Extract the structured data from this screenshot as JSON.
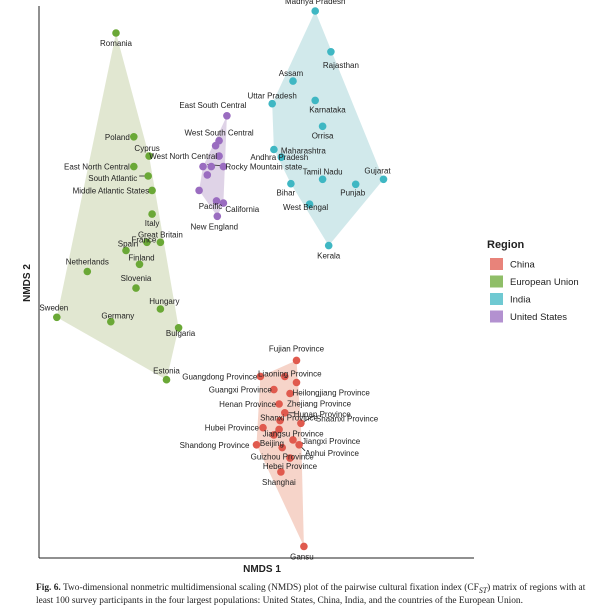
{
  "chart_data": {
    "type": "scatter",
    "xlabel": "NMDS 1",
    "ylabel": "NMDS 2",
    "xlim": [
      0,
      100
    ],
    "ylim": [
      0,
      100
    ],
    "legend": {
      "title": "Region",
      "placement": "right",
      "entries": [
        "China",
        "European Union",
        "India",
        "United States"
      ]
    },
    "series": [
      {
        "name": "China",
        "color": "#e05a4e",
        "hull_color": "#f6d2c6",
        "points": [
          {
            "label": "Fujian Province",
            "x": 59.2,
            "y": 35.8
          },
          {
            "label": "Guangdong Province",
            "x": 50.9,
            "y": 32.9
          },
          {
            "label": "Liaoning Province",
            "x": 56.5,
            "y": 32.9
          },
          {
            "label": "Heilongjiang Province",
            "x": 59.2,
            "y": 31.8
          },
          {
            "label": "Guangxi Province",
            "x": 54.0,
            "y": 30.5
          },
          {
            "label": "Zhejiang Province",
            "x": 57.7,
            "y": 29.8
          },
          {
            "label": "Henan Province",
            "x": 55.2,
            "y": 27.9
          },
          {
            "label": "Hunan Province",
            "x": 56.5,
            "y": 26.3
          },
          {
            "label": "Shanxi Province",
            "x": 55.4,
            "y": 24.9
          },
          {
            "label": "Shaanxi Province",
            "x": 60.2,
            "y": 24.4
          },
          {
            "label": "Hubei Province",
            "x": 51.5,
            "y": 23.6
          },
          {
            "label": "Jiangsu Province",
            "x": 55.2,
            "y": 23.3
          },
          {
            "label": "Beijing",
            "x": 54.0,
            "y": 22.3
          },
          {
            "label": "Jiangxi Province",
            "x": 58.4,
            "y": 21.4
          },
          {
            "label": "Shandong Province",
            "x": 50.0,
            "y": 20.5
          },
          {
            "label": "Anhui Province",
            "x": 59.8,
            "y": 20.5
          },
          {
            "label": "Guizhou Province",
            "x": 55.9,
            "y": 20.0
          },
          {
            "label": "Hebei Province",
            "x": 57.7,
            "y": 18.1
          },
          {
            "label": "Shanghai",
            "x": 55.6,
            "y": 15.6
          },
          {
            "label": "Gansu",
            "x": 60.9,
            "y": 2.1
          }
        ]
      },
      {
        "name": "European Union",
        "color": "#6aa836",
        "hull_color": "#dfe6cf",
        "points": [
          {
            "label": "Romania",
            "x": 17.7,
            "y": 95.1
          },
          {
            "label": "Poland",
            "x": 21.8,
            "y": 76.3
          },
          {
            "label": "Cyprus",
            "x": 25.3,
            "y": 72.8
          },
          {
            "label": "East North Central",
            "x": 21.8,
            "y": 70.9
          },
          {
            "label": "South Atlantic",
            "x": 25.1,
            "y": 69.2
          },
          {
            "label": "Middle Atlantic States",
            "x": 26.0,
            "y": 66.6
          },
          {
            "label": "Italy",
            "x": 26.0,
            "y": 62.3
          },
          {
            "label": "Great Britain",
            "x": 27.9,
            "y": 57.2
          },
          {
            "label": "France",
            "x": 24.8,
            "y": 57.2
          },
          {
            "label": "Spain",
            "x": 20.0,
            "y": 55.7
          },
          {
            "label": "Netherlands",
            "x": 11.1,
            "y": 51.9
          },
          {
            "label": "Finland",
            "x": 23.1,
            "y": 53.2
          },
          {
            "label": "Slovenia",
            "x": 22.3,
            "y": 48.9
          },
          {
            "label": "Hungary",
            "x": 27.9,
            "y": 45.1
          },
          {
            "label": "Sweden",
            "x": 4.1,
            "y": 43.6
          },
          {
            "label": "Germany",
            "x": 16.5,
            "y": 42.8
          },
          {
            "label": "Bulgaria",
            "x": 32.1,
            "y": 41.7
          },
          {
            "label": "Estonia",
            "x": 29.3,
            "y": 32.3
          }
        ]
      },
      {
        "name": "India",
        "color": "#3fb7c3",
        "hull_color": "#cfe8ea",
        "points": [
          {
            "label": "Madhya Pradesh",
            "x": 63.5,
            "y": 99.1
          },
          {
            "label": "Rajasthan",
            "x": 67.1,
            "y": 91.7
          },
          {
            "label": "Assam",
            "x": 58.4,
            "y": 86.4
          },
          {
            "label": "Uttar Pradesh",
            "x": 53.6,
            "y": 82.3
          },
          {
            "label": "Karnataka",
            "x": 63.5,
            "y": 82.9
          },
          {
            "label": "Orrisa",
            "x": 65.2,
            "y": 78.2
          },
          {
            "label": "Maharashtra",
            "x": 54.0,
            "y": 74.0
          },
          {
            "label": "Andhra Pradesh",
            "x": 55.7,
            "y": 72.6
          },
          {
            "label": "Gujarat",
            "x": 79.2,
            "y": 68.6
          },
          {
            "label": "Tamil Nadu",
            "x": 65.2,
            "y": 68.6
          },
          {
            "label": "Punjab",
            "x": 72.8,
            "y": 67.7
          },
          {
            "label": "Bihar",
            "x": 57.9,
            "y": 67.8
          },
          {
            "label": "West Bengal",
            "x": 62.2,
            "y": 64.1
          },
          {
            "label": "Kerala",
            "x": 66.6,
            "y": 56.6
          }
        ]
      },
      {
        "name": "United States",
        "color": "#9a6cc0",
        "hull_color": "#ddd1e6",
        "points": [
          {
            "label": "East South Central",
            "x": 43.2,
            "y": 80.1
          },
          {
            "label": "West South Central",
            "x": 41.4,
            "y": 75.6
          },
          {
            "label": "",
            "x": 40.6,
            "y": 74.7
          },
          {
            "label": "West North Central",
            "x": 41.4,
            "y": 72.8
          },
          {
            "label": "",
            "x": 37.7,
            "y": 70.9
          },
          {
            "label": "",
            "x": 39.6,
            "y": 70.9
          },
          {
            "label": "Rocky Mountain state",
            "x": 42.4,
            "y": 70.9
          },
          {
            "label": "",
            "x": 38.7,
            "y": 69.4
          },
          {
            "label": "",
            "x": 36.8,
            "y": 66.6
          },
          {
            "label": "Pacific",
            "x": 40.8,
            "y": 64.7
          },
          {
            "label": "California",
            "x": 42.4,
            "y": 64.3
          },
          {
            "label": "New England",
            "x": 41.0,
            "y": 61.9
          }
        ]
      }
    ]
  },
  "caption": {
    "fig_label": "Fig. 6.",
    "text": "Two-dimensional nonmetric multidimensional scaling (NMDS) plot of the pairwise cultural fixation index (CF",
    "sub": "ST",
    "text2": ") matrix of regions with at least 100 survey participants in the four largest populations: United States, China, India, and the countries of the European Union."
  }
}
